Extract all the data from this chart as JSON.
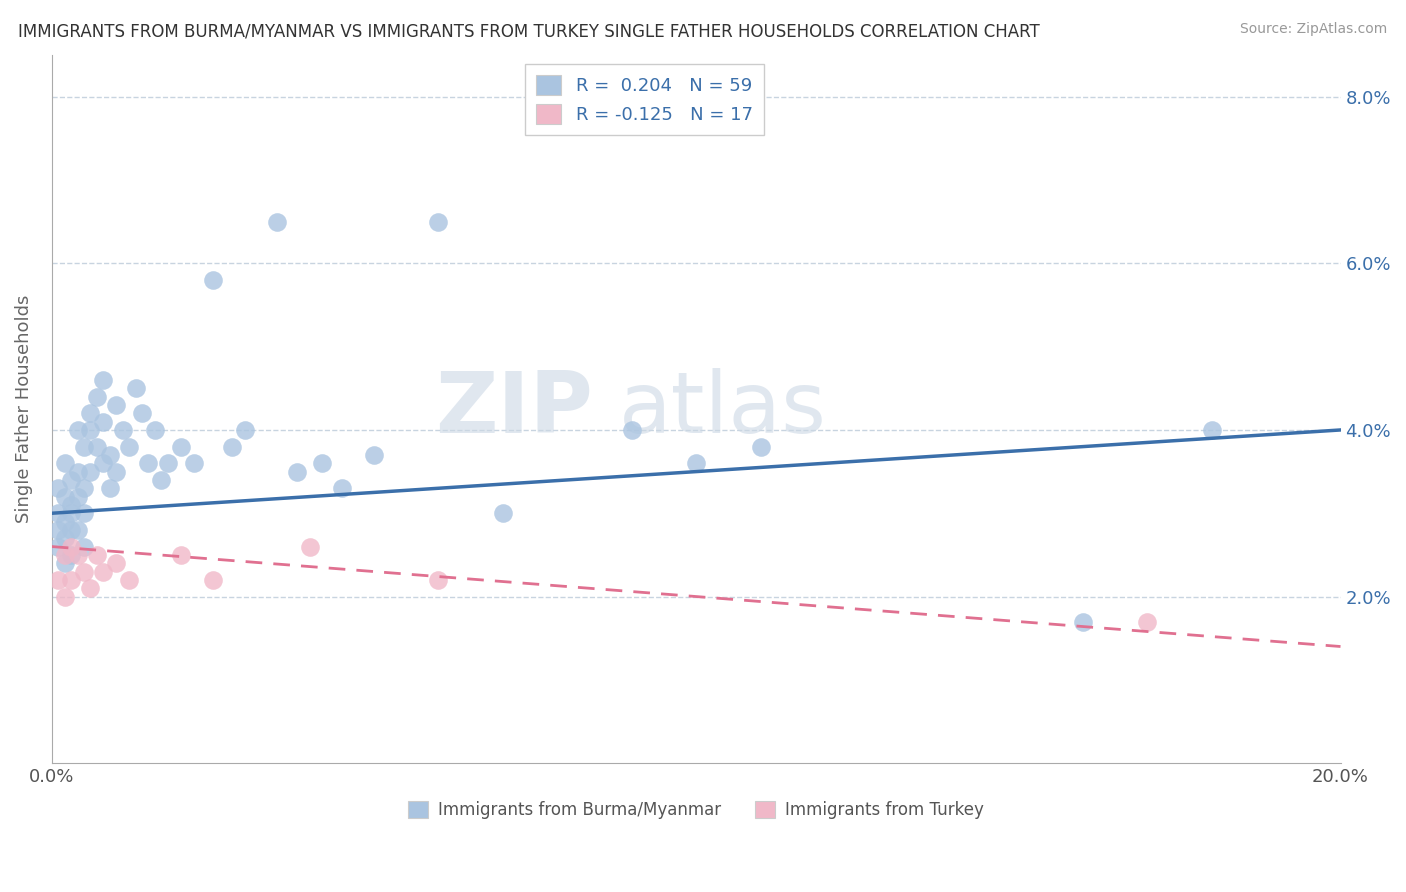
{
  "title": "IMMIGRANTS FROM BURMA/MYANMAR VS IMMIGRANTS FROM TURKEY SINGLE FATHER HOUSEHOLDS CORRELATION CHART",
  "source": "Source: ZipAtlas.com",
  "ylabel": "Single Father Households",
  "legend_entry1": "R =  0.204   N = 59",
  "legend_entry2": "R = -0.125   N = 17",
  "legend_label1": "Immigrants from Burma/Myanmar",
  "legend_label2": "Immigrants from Turkey",
  "R1": 0.204,
  "N1": 59,
  "R2": -0.125,
  "N2": 17,
  "color_blue": "#aac4e0",
  "color_blue_line": "#3b6faa",
  "color_pink": "#f0b8c8",
  "color_pink_line": "#e07090",
  "color_grid": "#c8d4e0",
  "color_legend_text": "#3b6faa",
  "xlim": [
    0.0,
    0.2
  ],
  "ylim": [
    0.0,
    0.085
  ],
  "yticks": [
    0.02,
    0.04,
    0.06,
    0.08
  ],
  "ytick_labels": [
    "2.0%",
    "4.0%",
    "6.0%",
    "8.0%"
  ],
  "xticks": [
    0.0,
    0.05,
    0.1,
    0.15,
    0.2
  ],
  "xtick_labels": [
    "0.0%",
    "",
    "",
    "",
    "20.0%"
  ],
  "watermark_zip": "ZIP",
  "watermark_atlas": "atlas",
  "blue_line_start_y": 0.03,
  "blue_line_end_y": 0.04,
  "pink_line_start_y": 0.026,
  "pink_line_end_y": 0.014,
  "burma_x": [
    0.001,
    0.001,
    0.001,
    0.001,
    0.002,
    0.002,
    0.002,
    0.002,
    0.002,
    0.003,
    0.003,
    0.003,
    0.003,
    0.003,
    0.004,
    0.004,
    0.004,
    0.004,
    0.005,
    0.005,
    0.005,
    0.005,
    0.006,
    0.006,
    0.006,
    0.007,
    0.007,
    0.008,
    0.008,
    0.008,
    0.009,
    0.009,
    0.01,
    0.01,
    0.011,
    0.012,
    0.013,
    0.014,
    0.015,
    0.016,
    0.017,
    0.018,
    0.02,
    0.022,
    0.025,
    0.028,
    0.03,
    0.035,
    0.038,
    0.042,
    0.045,
    0.05,
    0.06,
    0.07,
    0.09,
    0.1,
    0.11,
    0.16,
    0.18
  ],
  "burma_y": [
    0.028,
    0.03,
    0.033,
    0.026,
    0.027,
    0.032,
    0.029,
    0.036,
    0.024,
    0.031,
    0.028,
    0.034,
    0.025,
    0.03,
    0.035,
    0.028,
    0.032,
    0.04,
    0.03,
    0.038,
    0.033,
    0.026,
    0.04,
    0.035,
    0.042,
    0.038,
    0.044,
    0.036,
    0.041,
    0.046,
    0.033,
    0.037,
    0.035,
    0.043,
    0.04,
    0.038,
    0.045,
    0.042,
    0.036,
    0.04,
    0.034,
    0.036,
    0.038,
    0.036,
    0.058,
    0.038,
    0.04,
    0.065,
    0.035,
    0.036,
    0.033,
    0.037,
    0.065,
    0.03,
    0.04,
    0.036,
    0.038,
    0.017,
    0.04
  ],
  "turkey_x": [
    0.001,
    0.002,
    0.002,
    0.003,
    0.003,
    0.004,
    0.005,
    0.006,
    0.007,
    0.008,
    0.01,
    0.012,
    0.02,
    0.025,
    0.04,
    0.06,
    0.17
  ],
  "turkey_y": [
    0.022,
    0.02,
    0.025,
    0.022,
    0.026,
    0.025,
    0.023,
    0.021,
    0.025,
    0.023,
    0.024,
    0.022,
    0.025,
    0.022,
    0.026,
    0.022,
    0.017
  ]
}
